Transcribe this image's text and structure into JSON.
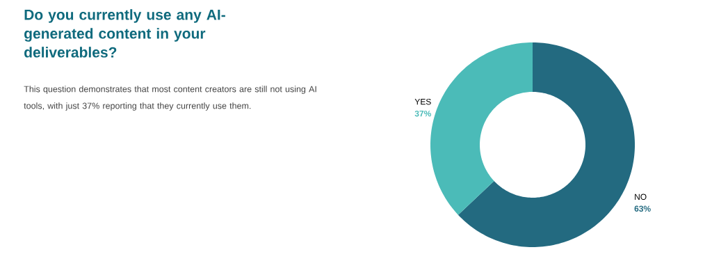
{
  "chart_data": {
    "type": "donut",
    "title": "Do you currently use any AI-generated content in your deliverables?",
    "subtitle": "This question demonstrates that most content creators are still not using AI tools, with just 37% reporting that they currently use them.",
    "categories": [
      "NO",
      "YES"
    ],
    "values": [
      63,
      37
    ],
    "colors": [
      "#236a80",
      "#4bbbb8"
    ],
    "value_labels": [
      "63%",
      "37%"
    ]
  }
}
